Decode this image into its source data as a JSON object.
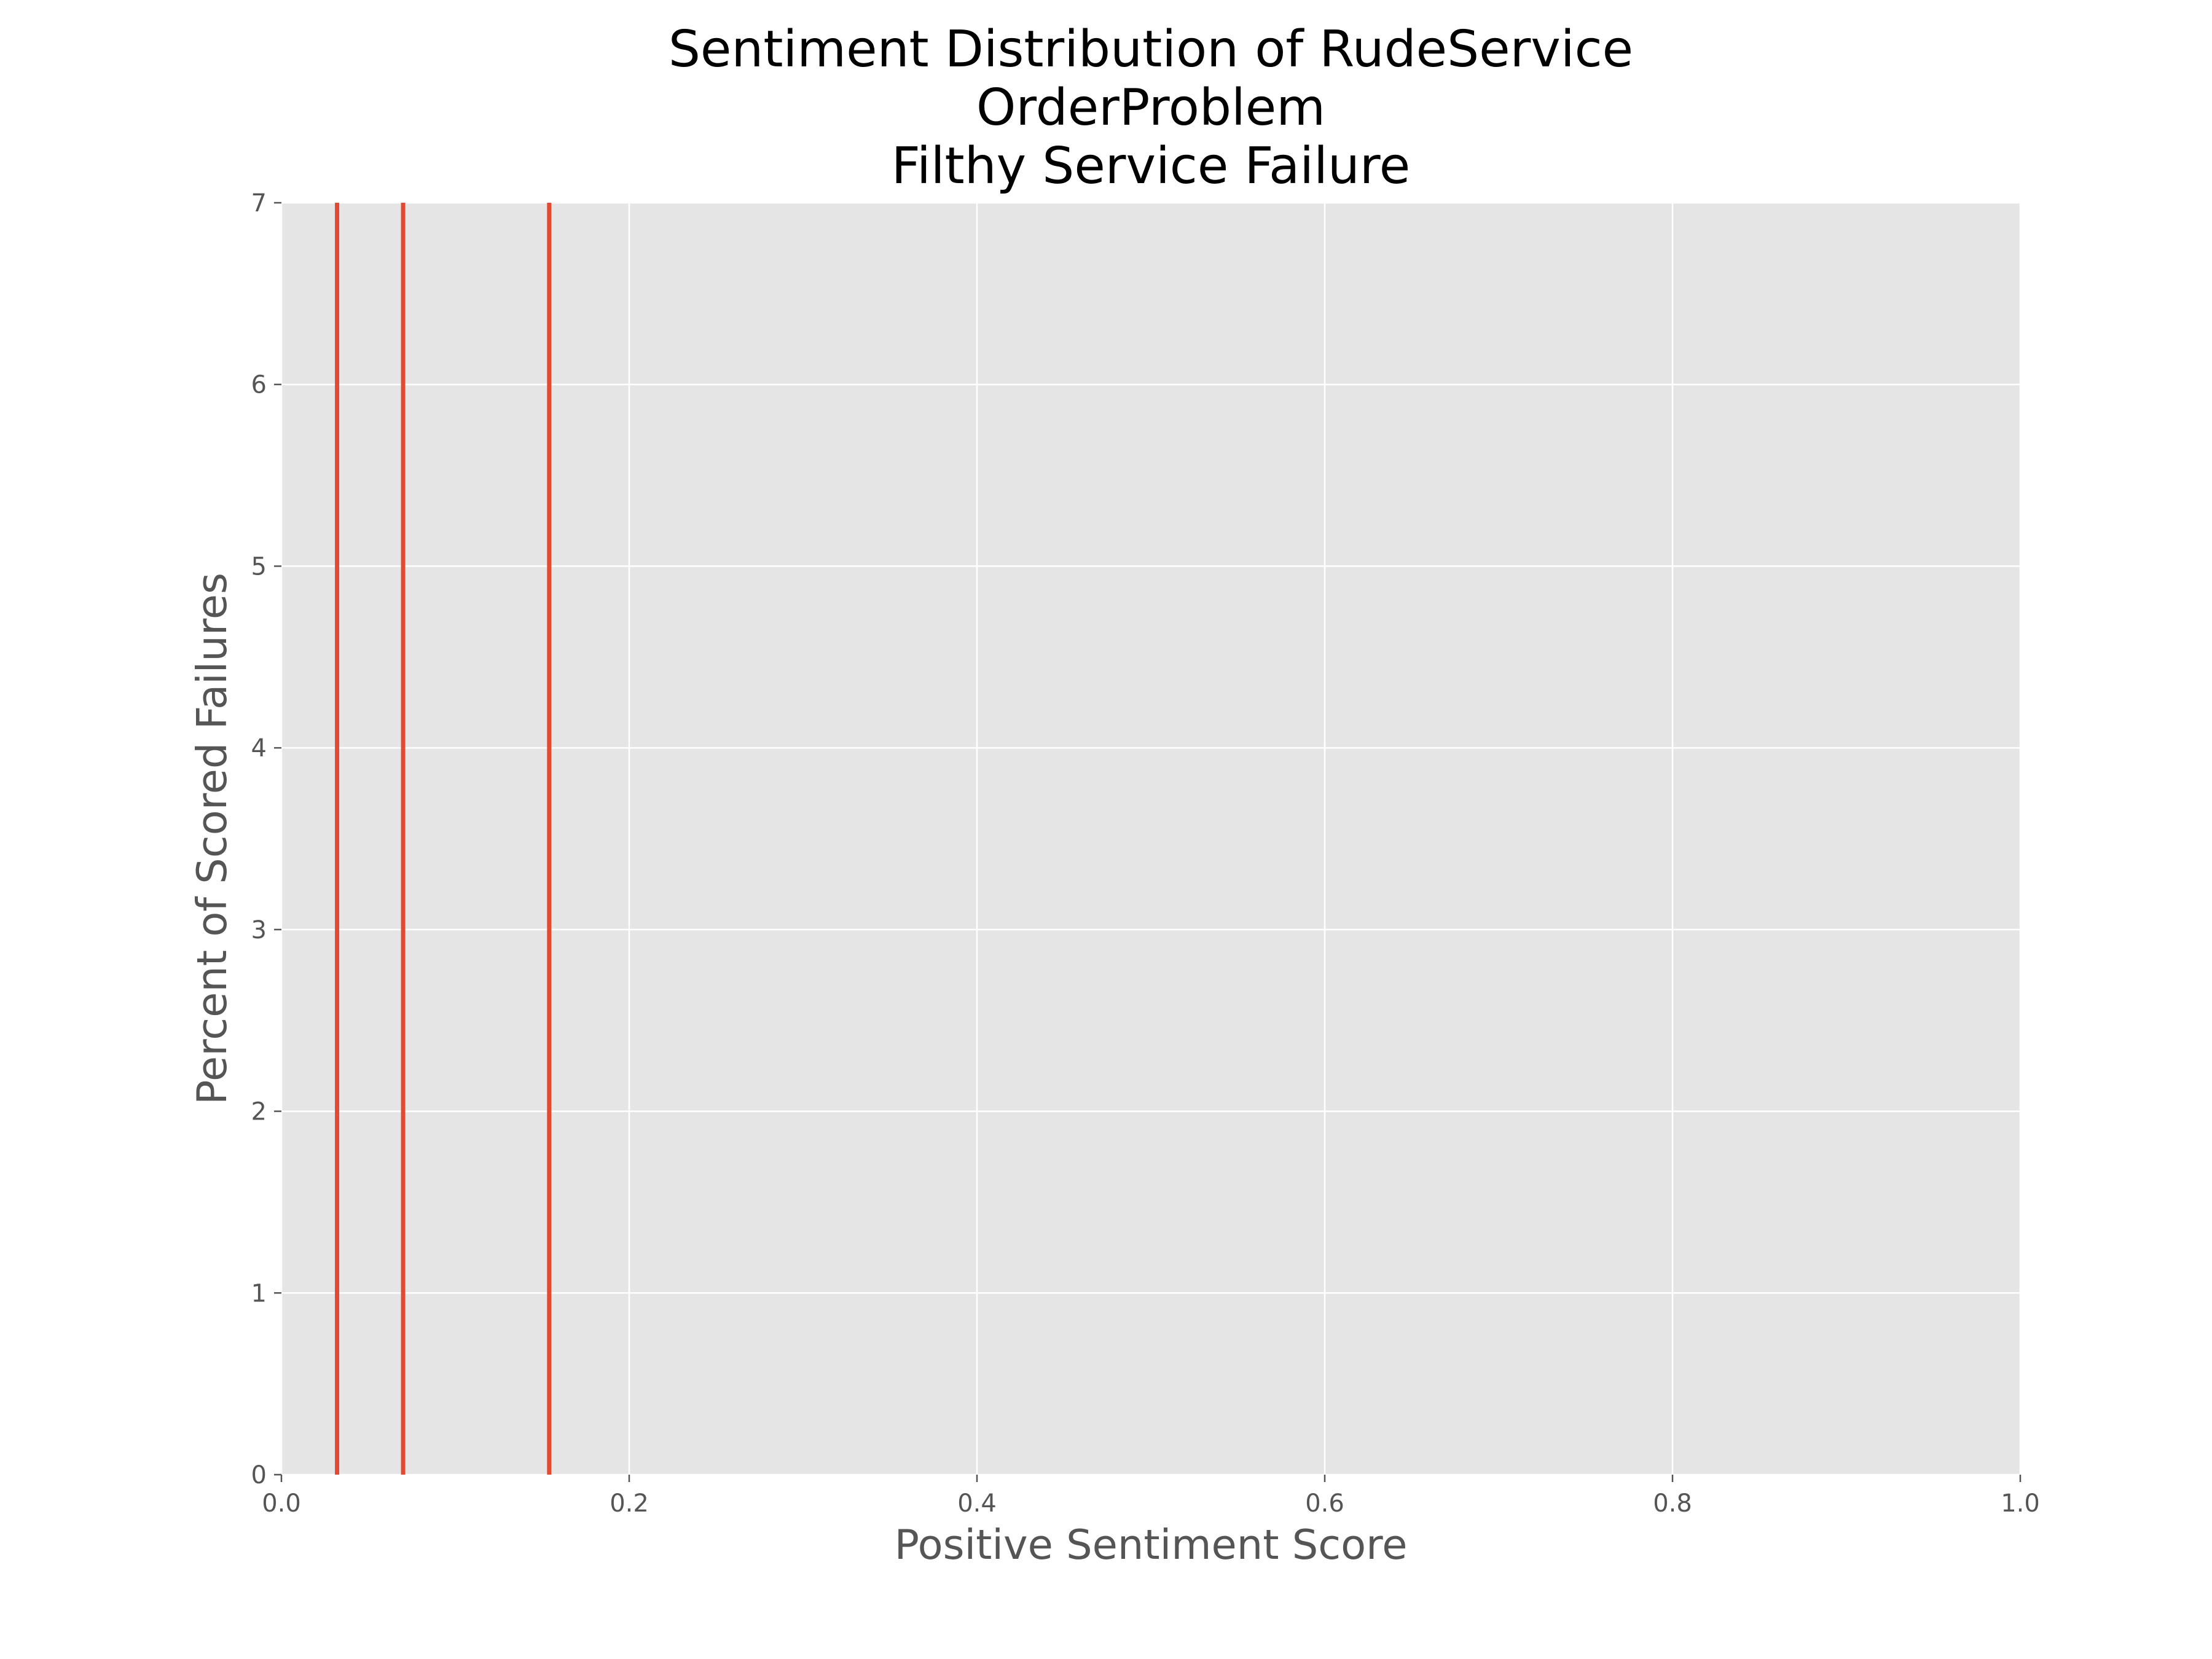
{
  "chart_data": {
    "type": "histogram",
    "title_lines": [
      "Sentiment Distribution of RudeService",
      "OrderProblem",
      "Filthy Service Failure"
    ],
    "xlabel": "Positive Sentiment Score",
    "ylabel": "Percent of Scored Failures",
    "xlim": [
      0,
      1
    ],
    "ylim": [
      0,
      7
    ],
    "xticks": [
      "0.0",
      "0.2",
      "0.4",
      "0.6",
      "0.8",
      "1.0"
    ],
    "yticks": [
      "0",
      "1",
      "2",
      "3",
      "4",
      "5",
      "6",
      "7"
    ],
    "grid": true,
    "series": [
      {
        "bars": [
          {
            "x": 0.032,
            "value": 7
          },
          {
            "x": 0.07,
            "value": 7
          },
          {
            "x": 0.154,
            "value": 7
          }
        ]
      }
    ],
    "colors": {
      "bar": "#E24A33",
      "plot_background": "#E5E5E5",
      "grid": "#FFFFFF"
    }
  }
}
